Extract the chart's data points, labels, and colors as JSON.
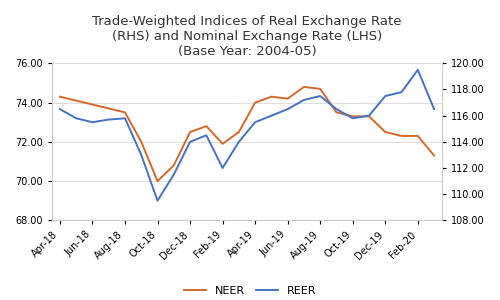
{
  "title": "Trade-Weighted Indices of Real Exchange Rate\n(RHS) and Nominal Exchange Rate (LHS)\n(Base Year: 2004-05)",
  "x_labels": [
    "Apr-18",
    "Jun-18",
    "Aug-18",
    "Oct-18",
    "Dec-18",
    "Feb-19",
    "Apr-19",
    "Jun-19",
    "Aug-19",
    "Oct-19",
    "Dec-19",
    "Feb-20"
  ],
  "x_positions": [
    0,
    2,
    4,
    6,
    8,
    10,
    12,
    14,
    16,
    18,
    20,
    22
  ],
  "neer": [
    74.3,
    74.1,
    73.9,
    73.7,
    73.5,
    72.0,
    70.0,
    70.8,
    72.5,
    72.8,
    71.9,
    72.5,
    74.0,
    74.3,
    74.2,
    74.8,
    74.7,
    73.5,
    73.3,
    73.3,
    72.5,
    72.3,
    72.3,
    71.3
  ],
  "reer": [
    116.5,
    115.8,
    115.5,
    115.7,
    115.8,
    113.0,
    109.5,
    111.5,
    114.0,
    114.5,
    112.0,
    114.0,
    115.5,
    116.0,
    116.5,
    117.2,
    117.5,
    116.5,
    115.8,
    116.0,
    117.5,
    117.8,
    119.5,
    116.5
  ],
  "neer_color": "#d4682a",
  "reer_color": "#4472c4",
  "lhs_ylim": [
    68.0,
    76.0
  ],
  "rhs_ylim": [
    108.0,
    120.0
  ],
  "lhs_yticks": [
    68.0,
    70.0,
    72.0,
    74.0,
    76.0
  ],
  "rhs_yticks": [
    108.0,
    110.0,
    112.0,
    114.0,
    116.0,
    118.0,
    120.0
  ],
  "background_color": "#ffffff",
  "title_fontsize": 9.5,
  "tick_fontsize": 7,
  "legend_fontsize": 8,
  "linewidth": 1.4
}
